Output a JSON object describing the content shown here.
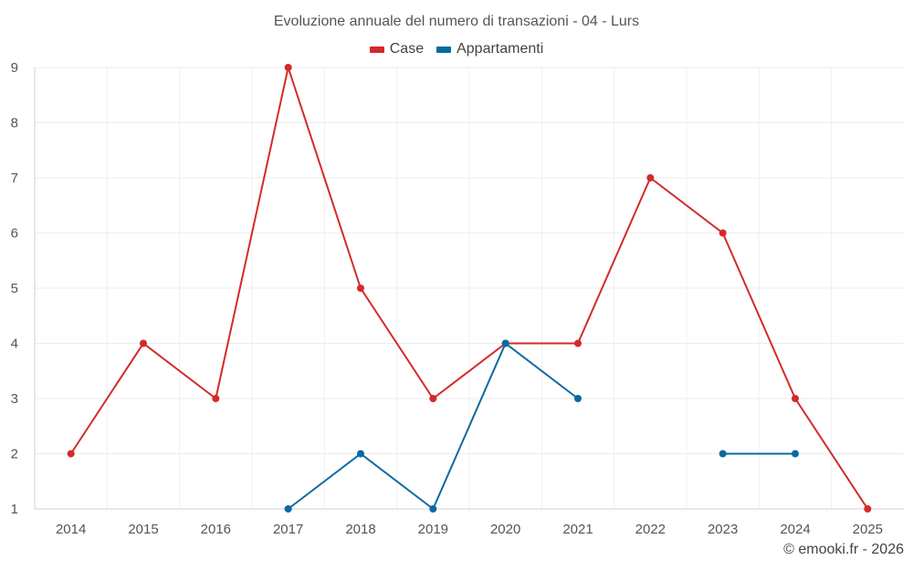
{
  "chart_data": {
    "type": "line",
    "title": "Evoluzione annuale del numero di transazioni - 04 - Lurs",
    "xlabel": "",
    "ylabel": "",
    "categories": [
      "2014",
      "2015",
      "2016",
      "2017",
      "2018",
      "2019",
      "2020",
      "2021",
      "2022",
      "2023",
      "2024",
      "2025"
    ],
    "ylim": [
      1,
      9
    ],
    "yticks": [
      "1",
      "2",
      "3",
      "4",
      "5",
      "6",
      "7",
      "8",
      "9"
    ],
    "grid": true,
    "legend_position": "top-center",
    "series": [
      {
        "name": "Case",
        "color": "#d42a2a",
        "values": [
          2,
          4,
          3,
          9,
          5,
          3,
          4,
          4,
          7,
          6,
          3,
          1
        ]
      },
      {
        "name": "Appartamenti",
        "color": "#0a6aa1",
        "values": [
          null,
          null,
          null,
          1,
          2,
          1,
          4,
          3,
          null,
          2,
          2,
          null
        ]
      }
    ]
  },
  "footer": {
    "credit": "© emooki.fr - 2026"
  }
}
